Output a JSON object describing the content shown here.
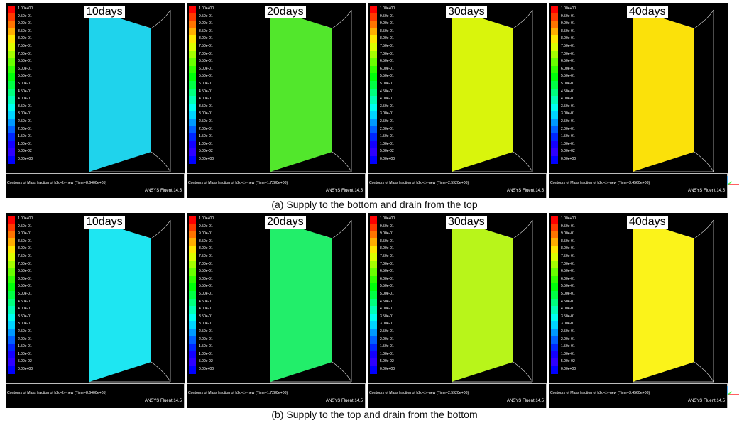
{
  "legend_values": [
    "1.00e+00",
    "9.50e-01",
    "9.00e-01",
    "8.50e-01",
    "8.00e-01",
    "7.50e-01",
    "7.00e-01",
    "6.50e-01",
    "6.00e-01",
    "5.50e-01",
    "5.00e-01",
    "4.50e-01",
    "4.00e-01",
    "3.50e-01",
    "3.00e-01",
    "2.50e-01",
    "2.00e-01",
    "1.50e-01",
    "1.00e-01",
    "5.00e-02",
    "0.00e+00"
  ],
  "legend_colors": [
    "#ff0000",
    "#ff3a00",
    "#ff7400",
    "#ffae00",
    "#ffe700",
    "#ddff00",
    "#a3ff00",
    "#69ff00",
    "#2fff00",
    "#00ff0a",
    "#00ff44",
    "#00ff7e",
    "#00ffb8",
    "#00fff1",
    "#00d4ff",
    "#009aff",
    "#0060ff",
    "#0026ff",
    "#1400ff",
    "#2e00ff",
    "#0000ff"
  ],
  "rows": [
    {
      "id": "a",
      "caption": "(a) Supply to the bottom and drain from the top",
      "panels": [
        {
          "days": "10days",
          "contour_label": "Contours of Mass fraction of h2o<l>-new  (Time=8.6400e+05)",
          "software": "ANSYS Fluent 14.5",
          "fill_color": "#1fd3ec"
        },
        {
          "days": "20days",
          "contour_label": "Contours of Mass fraction of h2o<l>-new  (Time=1.7280e+06)",
          "software": "ANSYS Fluent 14.5",
          "fill_color": "#52e72c"
        },
        {
          "days": "30days",
          "contour_label": "Contours of Mass fraction of h2o<l>-new  (Time=2.5920e+06)",
          "software": "ANSYS Fluent 14.5",
          "fill_color": "#d9f50c"
        },
        {
          "days": "40days",
          "contour_label": "Contours of Mass fraction of h2o<l>-new  (Time=3.4560e+06)",
          "software": "ANSYS Fluent 14.5",
          "fill_color": "#fbe10a"
        }
      ]
    },
    {
      "id": "b",
      "caption": "(b) Supply to the top and drain from the bottom",
      "panels": [
        {
          "days": "10days",
          "contour_label": "Contours of Mass fraction of h2o<l>-new  (Time=8.6400e+05)",
          "software": "ANSYS Fluent 14.5",
          "fill_color": "#1ee6f2"
        },
        {
          "days": "20days",
          "contour_label": "Contours of Mass fraction of h2o<l>-new  (Time=1.7280e+06)",
          "software": "ANSYS Fluent 14.5",
          "fill_color": "#22ee6a"
        },
        {
          "days": "30days",
          "contour_label": "Contours of Mass fraction of h2o<l>-new  (Time=2.5920e+06)",
          "software": "ANSYS Fluent 14.5",
          "fill_color": "#b8f51a"
        },
        {
          "days": "40days",
          "contour_label": "Contours of Mass fraction of h2o<l>-new  (Time=3.4560e+06)",
          "software": "ANSYS Fluent 14.5",
          "fill_color": "#fbf31a"
        }
      ]
    }
  ]
}
